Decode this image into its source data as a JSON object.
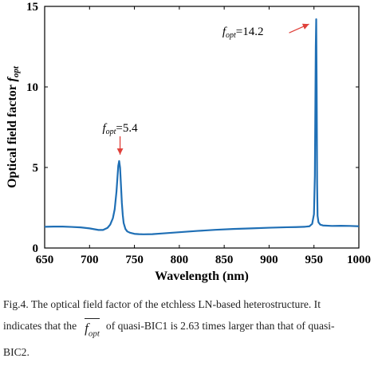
{
  "chart_data": {
    "type": "line",
    "xlabel": "Wavelength  (nm)",
    "ylabel_main": "Optical field factor",
    "ylabel_f": "f",
    "ylabel_sub": "opt",
    "xlim": [
      650,
      1000
    ],
    "ylim": [
      0,
      15
    ],
    "xticks": [
      650,
      700,
      750,
      800,
      850,
      900,
      950,
      1000
    ],
    "yticks": [
      0,
      5,
      10,
      15
    ],
    "grid": false,
    "line_color": "#1f6fb5",
    "annotation_color": "#e0403a",
    "series": [
      {
        "x": [
          650,
          660,
          670,
          680,
          690,
          700,
          710,
          715,
          720,
          723,
          726,
          728,
          730,
          731,
          732,
          733,
          734,
          735,
          736,
          737,
          738,
          740,
          742,
          745,
          750,
          755,
          760,
          770,
          780,
          800,
          820,
          840,
          860,
          880,
          900,
          920,
          930,
          940,
          945,
          948,
          950,
          951,
          952,
          952.5,
          953,
          953.5,
          954,
          955,
          957,
          960,
          970,
          980,
          990,
          1000
        ],
        "y": [
          1.32,
          1.33,
          1.33,
          1.31,
          1.28,
          1.22,
          1.12,
          1.12,
          1.25,
          1.45,
          1.85,
          2.4,
          3.5,
          4.3,
          5.1,
          5.4,
          5.0,
          3.9,
          2.8,
          2.05,
          1.55,
          1.18,
          1.03,
          0.95,
          0.88,
          0.86,
          0.85,
          0.86,
          0.9,
          0.98,
          1.06,
          1.13,
          1.18,
          1.22,
          1.26,
          1.29,
          1.3,
          1.32,
          1.35,
          1.5,
          2.1,
          4.5,
          12.5,
          14.2,
          10.0,
          4.0,
          2.0,
          1.6,
          1.45,
          1.4,
          1.37,
          1.38,
          1.37,
          1.35
        ]
      }
    ],
    "annotations": [
      {
        "f": "f",
        "sub": "opt",
        "text": "=5.4",
        "x": 734,
        "y": 5.4
      },
      {
        "f": "f",
        "sub": "opt",
        "text": "=14.2",
        "x": 952.5,
        "y": 14.2
      }
    ]
  },
  "caption": {
    "line1": "Fig.4. The optical field factor of the etchless LN-based heterostructure. It",
    "line2_pre": "indicates that the",
    "fopt_f": "f",
    "fopt_sub": "opt",
    "line2_post": "of quasi-BIC1 is 2.63 times larger than that of quasi-",
    "line3": "BIC2."
  }
}
